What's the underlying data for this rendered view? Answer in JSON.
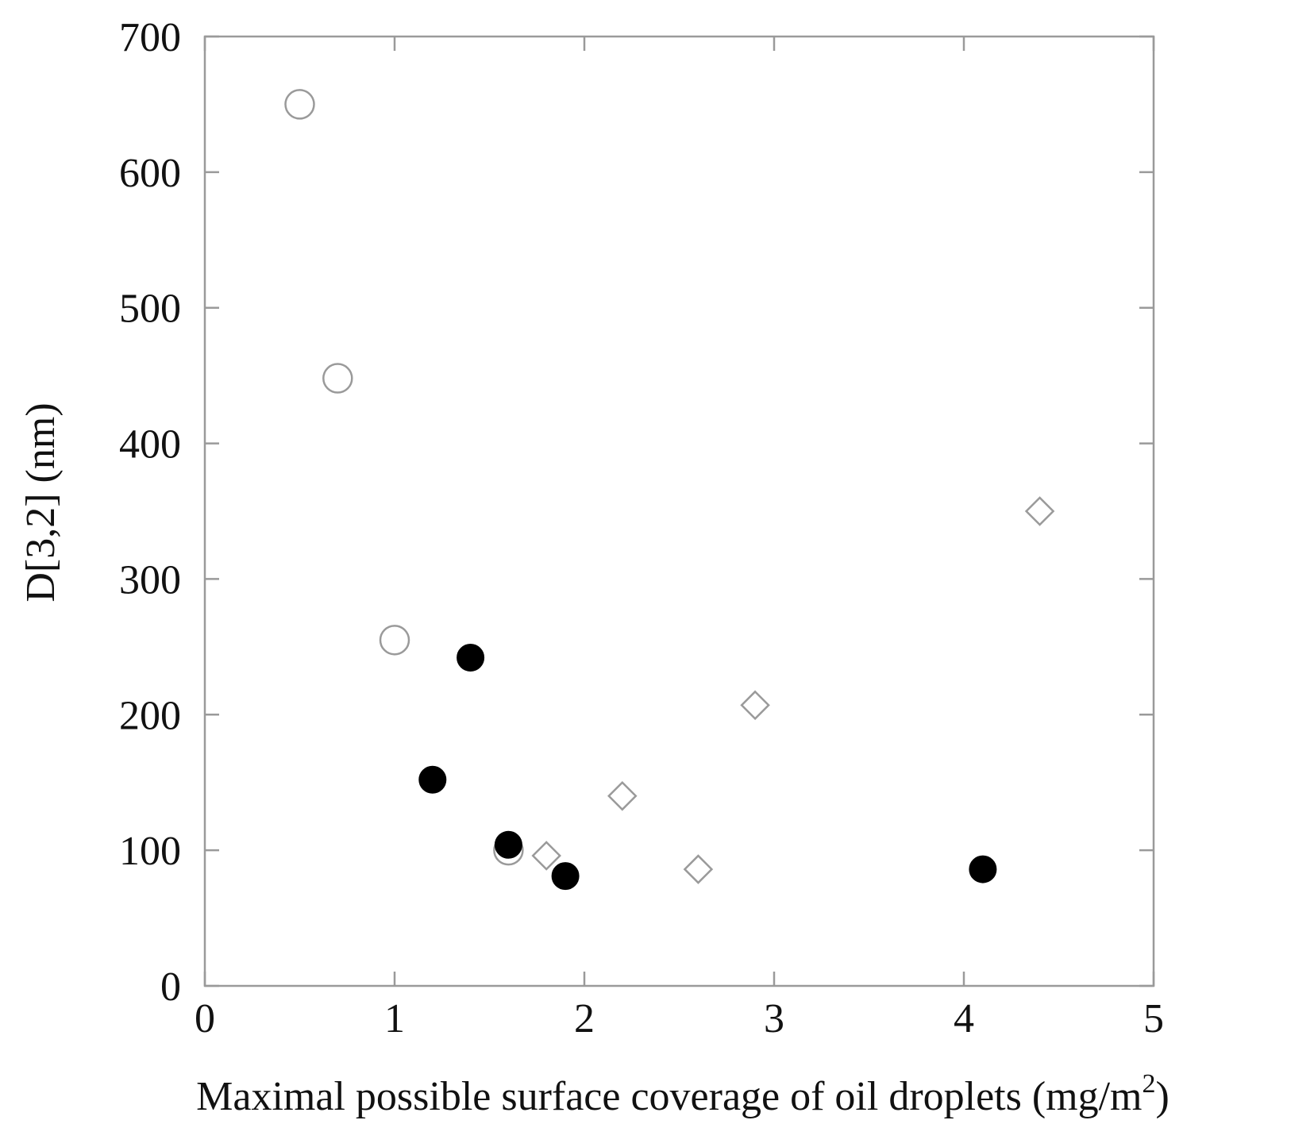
{
  "chart_data": {
    "type": "scatter",
    "title": "",
    "xlabel": "Maximal possible surface coverage of oil droplets (mg/m",
    "xlabel_superscript": "2",
    "xlabel_suffix": ")",
    "ylabel": "D[3,2] (nm)",
    "xlim": [
      0,
      5
    ],
    "ylim": [
      0,
      700
    ],
    "x_ticks": [
      0,
      1,
      2,
      3,
      4,
      5
    ],
    "y_ticks": [
      0,
      100,
      200,
      300,
      400,
      500,
      600,
      700
    ],
    "grid": false,
    "legend": "none",
    "series": [
      {
        "marker": "open-circle",
        "color": "#9a9a9a",
        "points": [
          [
            0.5,
            650
          ],
          [
            0.7,
            448
          ],
          [
            1.0,
            255
          ],
          [
            1.6,
            100
          ]
        ]
      },
      {
        "marker": "filled-circle",
        "color": "#000000",
        "points": [
          [
            1.2,
            152
          ],
          [
            1.4,
            242
          ],
          [
            1.6,
            104
          ],
          [
            1.9,
            81
          ],
          [
            4.1,
            86
          ]
        ]
      },
      {
        "marker": "open-diamond",
        "color": "#9a9a9a",
        "points": [
          [
            1.8,
            96
          ],
          [
            2.2,
            140
          ],
          [
            2.6,
            86
          ],
          [
            2.9,
            207
          ],
          [
            4.4,
            350
          ]
        ]
      }
    ]
  }
}
